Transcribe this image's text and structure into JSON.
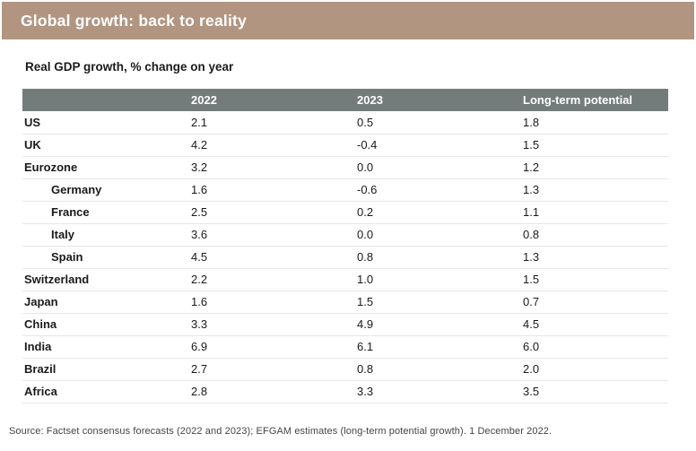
{
  "header": {
    "title": "Global growth: back to reality",
    "bar_color": "#b19581",
    "title_color": "#ffffff"
  },
  "subtitle": "Real GDP growth, % change on year",
  "source": "Source: Factset consensus forecasts (2022 and 2023); EFGAM estimates (long-term potential growth). 1 December 2022.",
  "colors": {
    "accent_taupe": "#b19581",
    "table_header_bg": "#747b7b",
    "row_divider": "#e7e7e7",
    "body_text": "#1a1a1a",
    "source_text": "#414549"
  },
  "chart_data": {
    "type": "table",
    "title": "Global growth: back to reality",
    "subtitle": "Real GDP growth, % change on year",
    "columns": [
      "",
      "2022",
      "2023",
      "Long-term potential"
    ],
    "rows": [
      {
        "label": "US",
        "indent": false,
        "values": [
          "2.1",
          "0.5",
          "1.8"
        ]
      },
      {
        "label": "UK",
        "indent": false,
        "values": [
          "4.2",
          "-0.4",
          "1.5"
        ]
      },
      {
        "label": "Eurozone",
        "indent": false,
        "values": [
          "3.2",
          "0.0",
          "1.2"
        ]
      },
      {
        "label": "Germany",
        "indent": true,
        "values": [
          "1.6",
          "-0.6",
          "1.3"
        ]
      },
      {
        "label": "France",
        "indent": true,
        "values": [
          "2.5",
          "0.2",
          "1.1"
        ]
      },
      {
        "label": "Italy",
        "indent": true,
        "values": [
          "3.6",
          "0.0",
          "0.8"
        ]
      },
      {
        "label": "Spain",
        "indent": true,
        "values": [
          "4.5",
          "0.8",
          "1.3"
        ]
      },
      {
        "label": "Switzerland",
        "indent": false,
        "values": [
          "2.2",
          "1.0",
          "1.5"
        ]
      },
      {
        "label": "Japan",
        "indent": false,
        "values": [
          "1.6",
          "1.5",
          "0.7"
        ]
      },
      {
        "label": "China",
        "indent": false,
        "values": [
          "3.3",
          "4.9",
          "4.5"
        ]
      },
      {
        "label": "India",
        "indent": false,
        "values": [
          "6.9",
          "6.1",
          "6.0"
        ]
      },
      {
        "label": "Brazil",
        "indent": false,
        "values": [
          "2.7",
          "0.8",
          "2.0"
        ]
      },
      {
        "label": "Africa",
        "indent": false,
        "values": [
          "2.8",
          "3.3",
          "3.5"
        ]
      }
    ]
  }
}
